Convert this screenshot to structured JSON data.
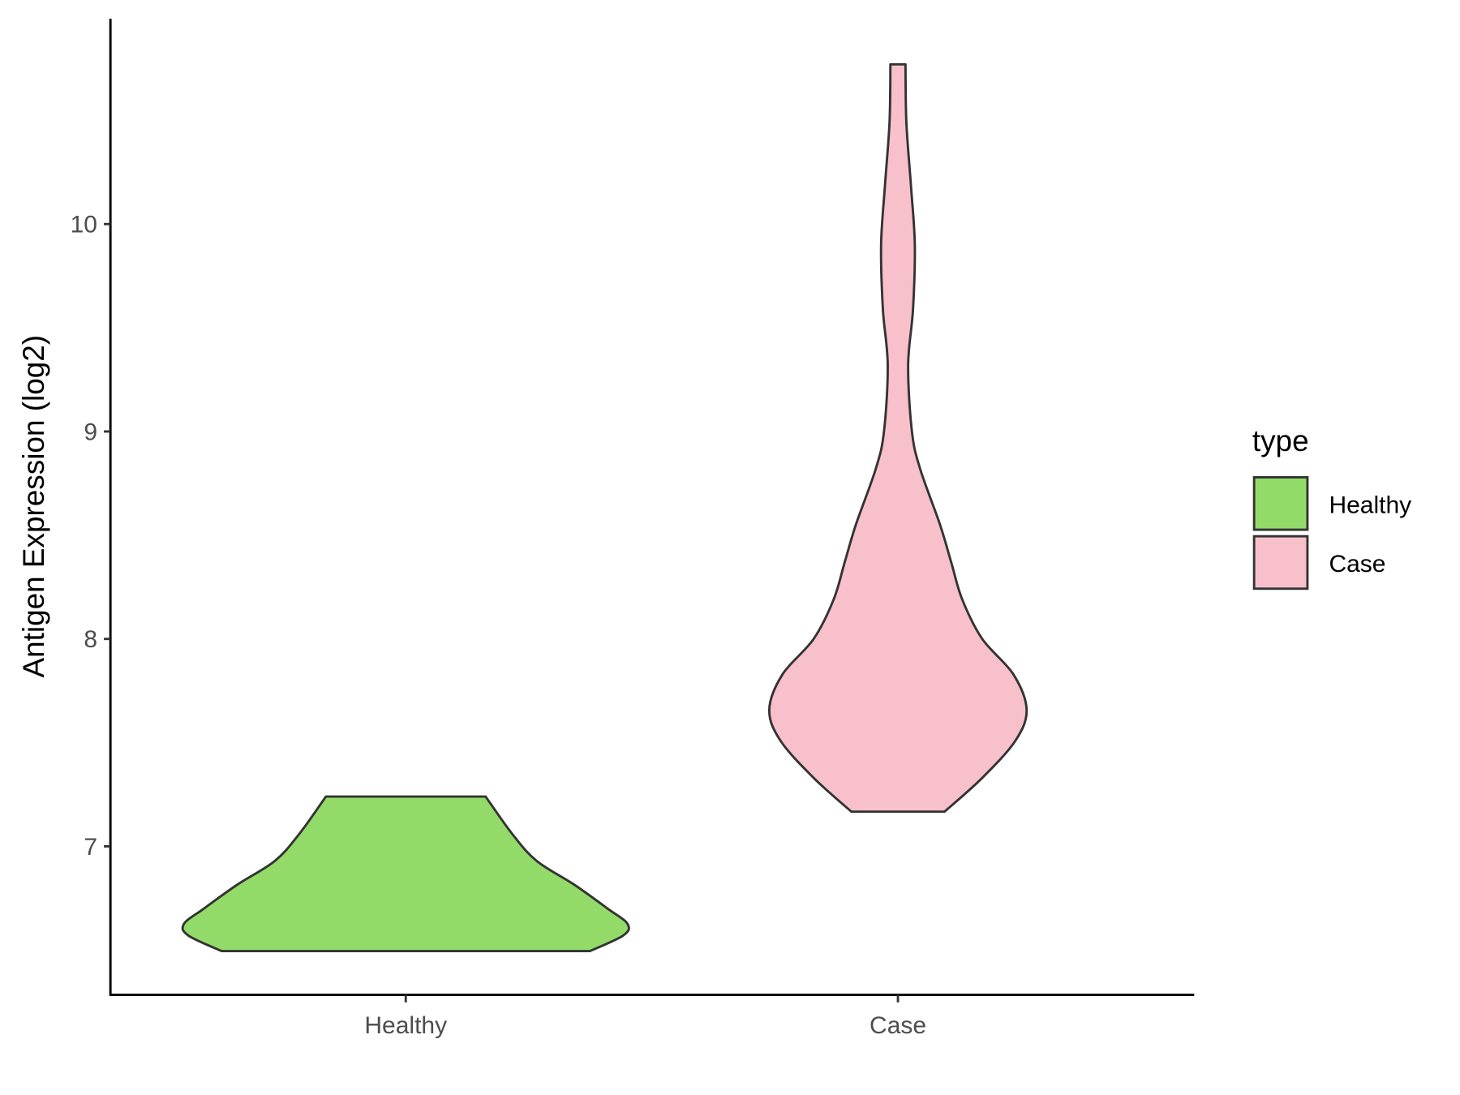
{
  "chart_data": {
    "type": "violin",
    "title": "",
    "xlabel": "",
    "ylabel": "Antigen Expression (log2)",
    "categories": [
      "Healthy",
      "Case"
    ],
    "ylim": [
      6.284,
      10.99
    ],
    "yticks": [
      7,
      8,
      9,
      10
    ],
    "grid": false,
    "legend": {
      "title": "type",
      "placement": "right",
      "entries": [
        "Healthy",
        "Case"
      ]
    },
    "series": [
      {
        "name": "Healthy",
        "color": "#93DB69",
        "profile": [
          [
            6.495,
            0.83
          ],
          [
            6.57,
            0.98
          ],
          [
            6.626,
            1.0
          ],
          [
            6.7,
            0.91
          ],
          [
            6.815,
            0.76
          ],
          [
            6.93,
            0.59
          ],
          [
            7.06,
            0.48
          ],
          [
            7.24,
            0.36
          ]
        ]
      },
      {
        "name": "Case",
        "color": "#F8C0CB",
        "profile": [
          [
            7.167,
            0.21
          ],
          [
            7.33,
            0.38
          ],
          [
            7.51,
            0.53
          ],
          [
            7.66,
            0.58
          ],
          [
            7.83,
            0.52
          ],
          [
            8.0,
            0.38
          ],
          [
            8.19,
            0.29
          ],
          [
            8.37,
            0.24
          ],
          [
            8.55,
            0.19
          ],
          [
            8.82,
            0.1
          ],
          [
            9.0,
            0.063
          ],
          [
            9.32,
            0.046
          ],
          [
            9.59,
            0.068
          ],
          [
            9.9,
            0.076
          ],
          [
            10.18,
            0.059
          ],
          [
            10.49,
            0.038
          ],
          [
            10.77,
            0.034
          ]
        ]
      }
    ],
    "outline_color": "#333333"
  }
}
